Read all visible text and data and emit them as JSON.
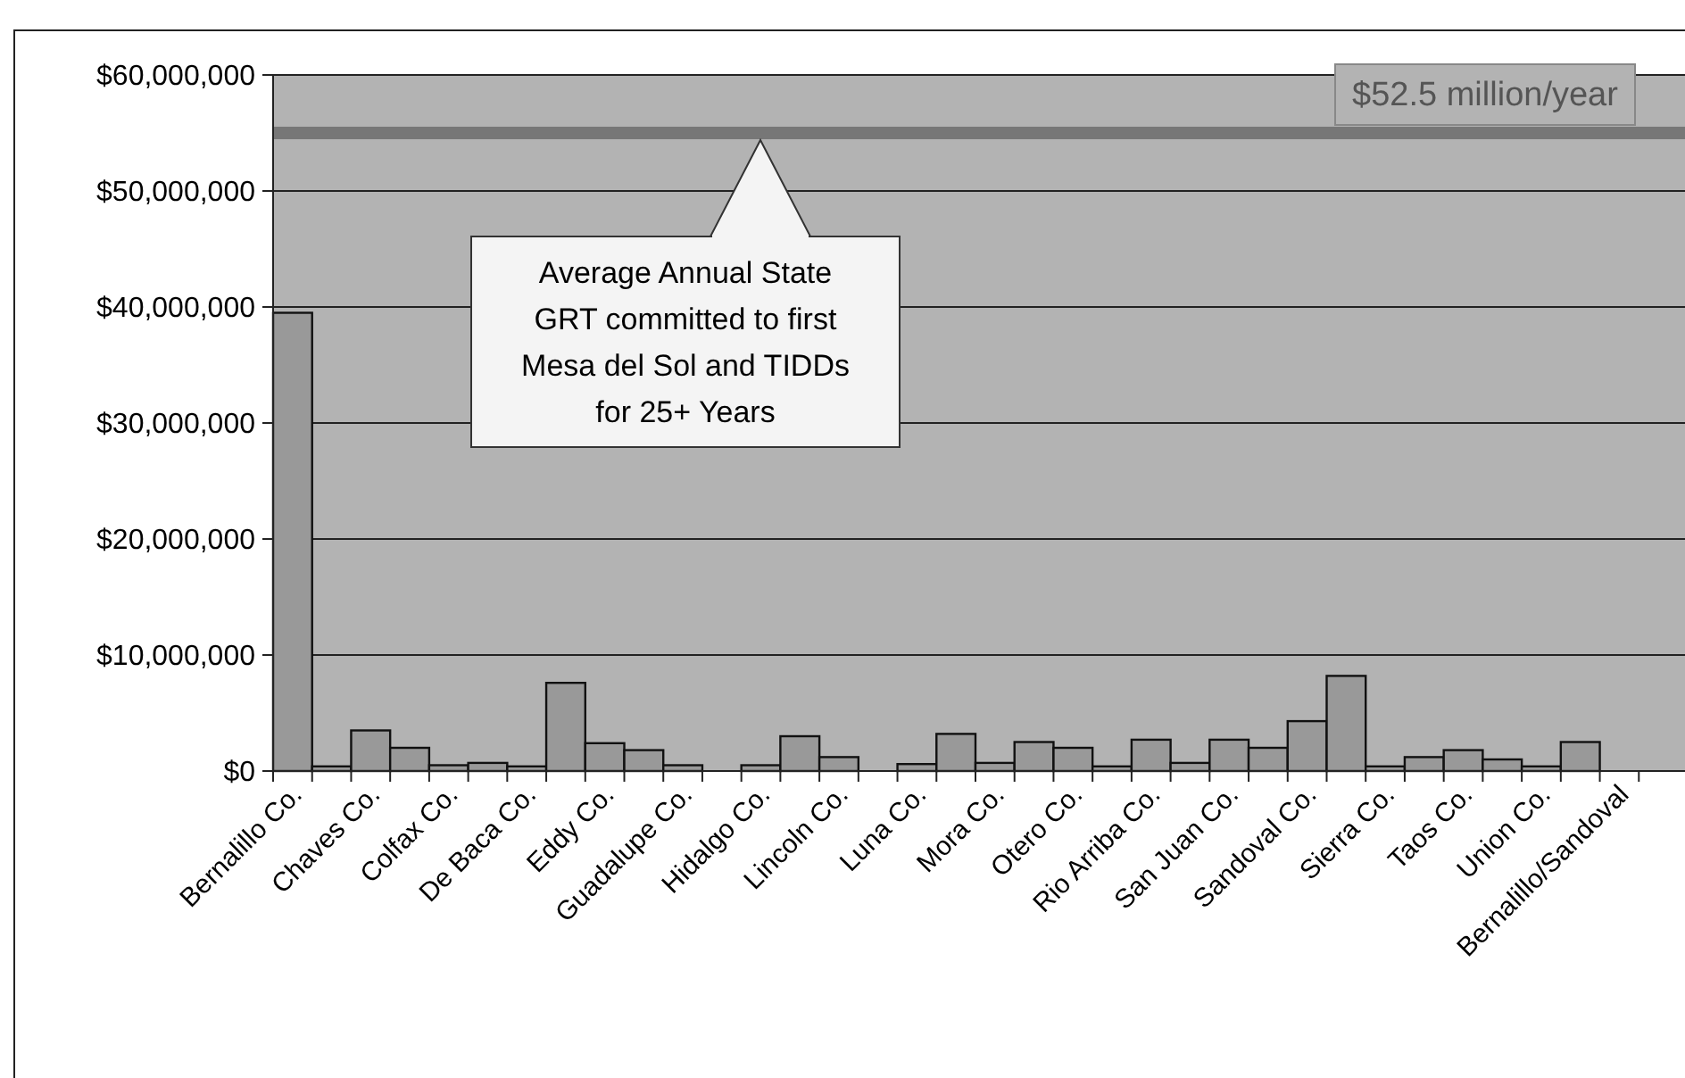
{
  "chart_data": {
    "type": "bar",
    "categories": [
      "Bernalillo Co.",
      null,
      "Chaves Co.",
      null,
      "Colfax Co.",
      null,
      "De Baca Co.",
      null,
      "Eddy Co.",
      null,
      "Guadalupe Co.",
      null,
      "Hidalgo Co.",
      null,
      "Lincoln Co.",
      null,
      "Luna Co.",
      null,
      "Mora Co.",
      null,
      "Otero Co.",
      null,
      "Rio Arriba Co.",
      null,
      "San Juan Co.",
      null,
      "Sandoval Co.",
      null,
      "Sierra Co.",
      null,
      "Taos Co.",
      null,
      "Union Co.",
      null,
      "Bernalillo/Sandoval",
      null
    ],
    "values": [
      39500000,
      400000,
      3500000,
      2000000,
      500000,
      700000,
      400000,
      7600000,
      2400000,
      1800000,
      500000,
      0,
      500000,
      3000000,
      1200000,
      0,
      600000,
      3200000,
      700000,
      2500000,
      2000000,
      400000,
      2700000,
      700000,
      2700000,
      2000000,
      4300000,
      8200000,
      400000,
      1200000,
      1800000,
      1000000,
      400000,
      2500000,
      0,
      0
    ],
    "color": "#999999",
    "ylim": [
      0,
      60000000
    ],
    "yticks": [
      {
        "value": 0,
        "label": "$0"
      },
      {
        "value": 10000000,
        "label": "$10,000,000"
      },
      {
        "value": 20000000,
        "label": "$20,000,000"
      },
      {
        "value": 30000000,
        "label": "$30,000,000"
      },
      {
        "value": 40000000,
        "label": "$40,000,000"
      },
      {
        "value": 50000000,
        "label": "$50,000,000"
      },
      {
        "value": 60000000,
        "label": "$60,000,000"
      }
    ],
    "grid": "y",
    "ref_lines": [
      {
        "axis": "y",
        "value": 55000000,
        "label": "$52.5 million/year",
        "color": "#777777"
      }
    ],
    "annotations": [
      "Average Annual State GRT committed to first Mesa del Sol and TIDDs for 25+ Years"
    ]
  }
}
